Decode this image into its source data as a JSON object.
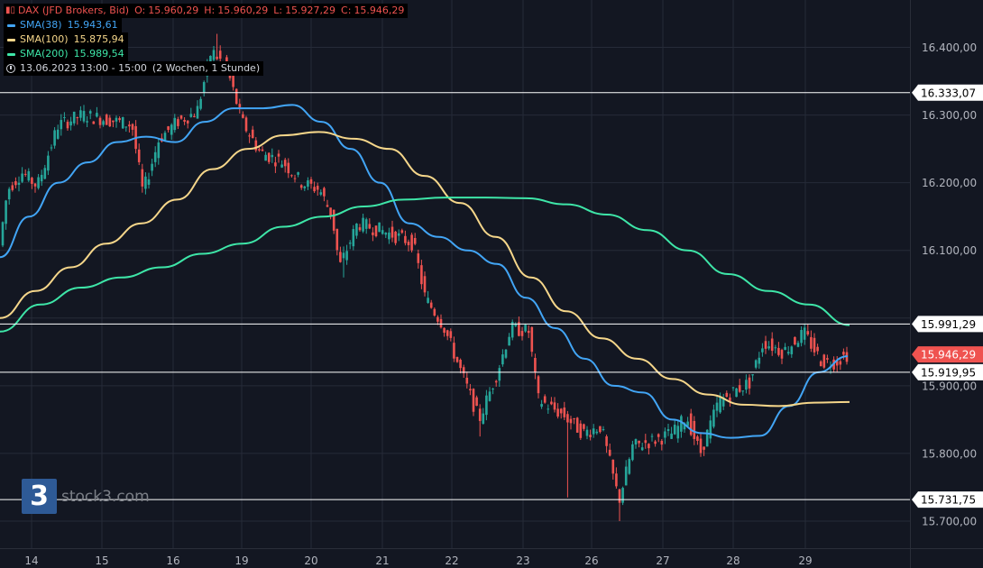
{
  "legend": {
    "title": "DAX (JFD Brokers, Bid)",
    "o_label": "O:",
    "o_value": "15.960,29",
    "h_label": "H:",
    "h_value": "15.960,29",
    "l_label": "L:",
    "l_value": "15.927,29",
    "c_label": "C:",
    "c_value": "15.946,29",
    "sma38_label": "SMA(38)",
    "sma38_value": "15.943,61",
    "sma100_label": "SMA(100)",
    "sma100_value": "15.875,94",
    "sma200_label": "SMA(200)",
    "sma200_value": "15.989,54",
    "date_range": "13.06.2023 13:00 - 15:00",
    "period": "(2 Wochen, 1 Stunde)"
  },
  "watermark": {
    "text": "stock3.com",
    "logo": "3"
  },
  "colors": {
    "background": "#131722",
    "up": "#26a69a",
    "down": "#ef5350",
    "sma38": "#42a5f5",
    "sma100": "#f5d68a",
    "sma200": "#3ee6a8",
    "price_tag": "#ef5350"
  },
  "chart_data": {
    "type": "candlestick",
    "ylim": [
      15660,
      16470
    ],
    "y_ticks": [
      "16.400,00",
      "16.300,00",
      "16.200,00",
      "16.100,00",
      "15.900,00",
      "15.800,00",
      "15.700,00"
    ],
    "y_tick_values": [
      16400,
      16300,
      16200,
      16100,
      15900,
      15800,
      15700
    ],
    "x_labels": [
      "14",
      "15",
      "16",
      "19",
      "20",
      "21",
      "22",
      "23",
      "26",
      "27",
      "28",
      "29"
    ],
    "horizontal_levels": [
      {
        "label": "16.333,07",
        "value": 16333.07
      },
      {
        "label": "15.991,29",
        "value": 15991.29
      },
      {
        "label": "15.919,95",
        "value": 15919.95
      },
      {
        "label": "15.731,75",
        "value": 15731.75
      }
    ],
    "last_price": {
      "label": "15.946,29",
      "value": 15946.29
    },
    "hidden_level_value": 16000,
    "series": [
      {
        "name": "SMA(38)",
        "values": [
          16090,
          16150,
          16200,
          16230,
          16260,
          16268,
          16260,
          16290,
          16310,
          16310,
          16315,
          16290,
          16250,
          16200,
          16140,
          16120,
          16100,
          16080,
          16030,
          15985,
          15940,
          15900,
          15890,
          15850,
          15830,
          15823,
          15826,
          15870,
          15920,
          15943.61
        ]
      },
      {
        "name": "SMA(100)",
        "values": [
          16000,
          16040,
          16075,
          16110,
          16140,
          16175,
          16220,
          16250,
          16270,
          16275,
          16265,
          16250,
          16210,
          16170,
          16120,
          16060,
          16010,
          15970,
          15940,
          15910,
          15887,
          15872,
          15870,
          15875,
          15875.94
        ]
      },
      {
        "name": "SMA(200)",
        "values": [
          15980,
          16020,
          16045,
          16060,
          16075,
          16095,
          16110,
          16135,
          16150,
          16165,
          16175,
          16178,
          16178,
          16177,
          16168,
          16153,
          16130,
          16100,
          16065,
          16040,
          16020,
          15989.54
        ]
      }
    ]
  }
}
